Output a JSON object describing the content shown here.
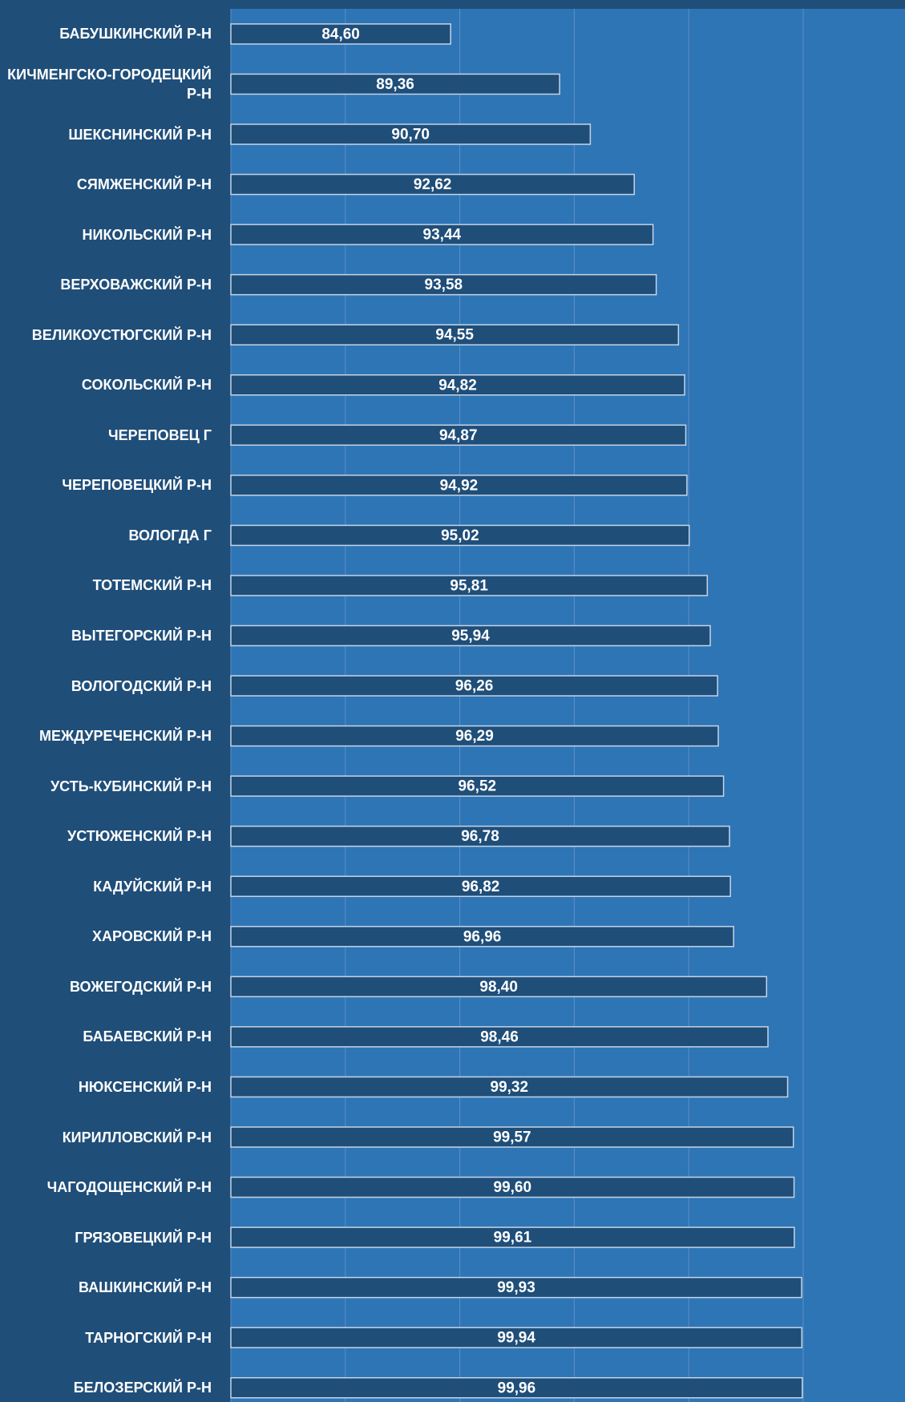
{
  "chart_data": {
    "type": "barh",
    "categories": [
      "БАБУШКИНСКИЙ Р-Н",
      "КИЧМЕНГСКО-ГОРОДЕЦКИЙ Р-Н",
      "ШЕКСНИНСКИЙ Р-Н",
      "СЯМЖЕНСКИЙ Р-Н",
      "НИКОЛЬСКИЙ Р-Н",
      "ВЕРХОВАЖСКИЙ Р-Н",
      "ВЕЛИКОУСТЮГСКИЙ Р-Н",
      "СОКОЛЬСКИЙ Р-Н",
      "ЧЕРЕПОВЕЦ Г",
      "ЧЕРЕПОВЕЦКИЙ Р-Н",
      "ВОЛОГДА Г",
      "ТОТЕМСКИЙ Р-Н",
      "ВЫТЕГОРСКИЙ Р-Н",
      "ВОЛОГОДСКИЙ Р-Н",
      "МЕЖДУРЕЧЕНСКИЙ Р-Н",
      "УСТЬ-КУБИНСКИЙ Р-Н",
      "УСТЮЖЕНСКИЙ Р-Н",
      "КАДУЙСКИЙ Р-Н",
      "ХАРОВСКИЙ Р-Н",
      "ВОЖЕГОДСКИЙ Р-Н",
      "БАБАЕВСКИЙ Р-Н",
      "НЮКСЕНСКИЙ Р-Н",
      "КИРИЛЛОВСКИЙ Р-Н",
      "ЧАГОДОЩЕНСКИЙ Р-Н",
      "ГРЯЗОВЕЦКИЙ Р-Н",
      "ВАШКИНСКИЙ Р-Н",
      "ТАРНОГСКИЙ Р-Н",
      "БЕЛОЗЕРСКИЙ Р-Н"
    ],
    "values": [
      84.6,
      89.36,
      90.7,
      92.62,
      93.44,
      93.58,
      94.55,
      94.82,
      94.87,
      94.92,
      95.02,
      95.81,
      95.94,
      96.26,
      96.29,
      96.52,
      96.78,
      96.82,
      96.96,
      98.4,
      98.46,
      99.32,
      99.57,
      99.6,
      99.61,
      99.93,
      99.94,
      99.96
    ],
    "value_labels": [
      "84,60",
      "89,36",
      "90,70",
      "92,62",
      "93,44",
      "93,58",
      "94,55",
      "94,82",
      "94,87",
      "94,92",
      "95,02",
      "95,81",
      "95,94",
      "96,26",
      "96,29",
      "96,52",
      "96,78",
      "96,82",
      "96,96",
      "98,40",
      "98,46",
      "99,32",
      "99,57",
      "99,60",
      "99,61",
      "99,93",
      "99,94",
      "99,96"
    ],
    "color": "#1f4e79",
    "xlim": [
      75,
      100
    ],
    "xticks": [
      75,
      80,
      85,
      90,
      95,
      100
    ],
    "grid": true
  }
}
